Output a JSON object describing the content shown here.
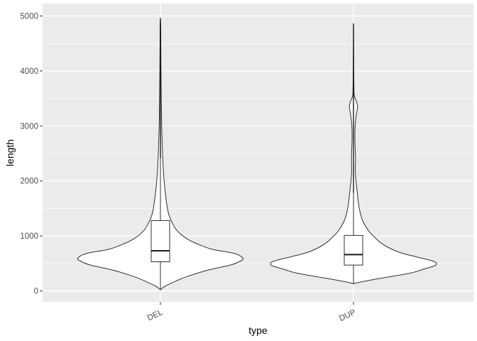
{
  "chart_data": {
    "type": "violin",
    "title": "",
    "xlabel": "type",
    "ylabel": "length",
    "categories": [
      "DEL",
      "DUP"
    ],
    "ylim": [
      -200,
      5200
    ],
    "yticks": [
      0,
      1000,
      2000,
      3000,
      4000,
      5000
    ],
    "grid": true,
    "legend": "none",
    "colors": {
      "panel": "#ebebeb",
      "grid_major": "#ffffff",
      "violin_fill": "#ffffff",
      "stroke": "#1a1a1a"
    },
    "boxplots": [
      {
        "category": "DEL",
        "min": 20,
        "q1": 530,
        "median": 730,
        "q3": 1280,
        "max": 2410,
        "outlier_max": 4950
      },
      {
        "category": "DUP",
        "min": 130,
        "q1": 470,
        "median": 660,
        "q3": 1010,
        "max": 1780,
        "outlier_max": 4850
      }
    ],
    "violins": [
      {
        "category": "DEL",
        "profile": [
          [
            20,
            0.0
          ],
          [
            80,
            0.05
          ],
          [
            160,
            0.16
          ],
          [
            260,
            0.32
          ],
          [
            380,
            0.58
          ],
          [
            470,
            0.85
          ],
          [
            550,
            0.98
          ],
          [
            600,
            1.0
          ],
          [
            680,
            0.9
          ],
          [
            760,
            0.62
          ],
          [
            860,
            0.44
          ],
          [
            960,
            0.31
          ],
          [
            1100,
            0.2
          ],
          [
            1250,
            0.14
          ],
          [
            1400,
            0.1
          ],
          [
            1600,
            0.075
          ],
          [
            1800,
            0.058
          ],
          [
            2000,
            0.045
          ],
          [
            2200,
            0.035
          ],
          [
            2500,
            0.026
          ],
          [
            2800,
            0.019
          ],
          [
            3100,
            0.014
          ],
          [
            3500,
            0.01
          ],
          [
            4000,
            0.007
          ],
          [
            4500,
            0.005
          ],
          [
            4800,
            0.004
          ],
          [
            4950,
            0.0
          ]
        ]
      },
      {
        "category": "DUP",
        "profile": [
          [
            130,
            0.0
          ],
          [
            160,
            0.08
          ],
          [
            230,
            0.33
          ],
          [
            320,
            0.68
          ],
          [
            400,
            0.86
          ],
          [
            470,
            1.0
          ],
          [
            540,
            0.97
          ],
          [
            620,
            0.76
          ],
          [
            700,
            0.56
          ],
          [
            800,
            0.41
          ],
          [
            900,
            0.31
          ],
          [
            1000,
            0.24
          ],
          [
            1100,
            0.18
          ],
          [
            1250,
            0.12
          ],
          [
            1400,
            0.085
          ],
          [
            1600,
            0.06
          ],
          [
            1800,
            0.045
          ],
          [
            2000,
            0.03
          ],
          [
            2200,
            0.022
          ],
          [
            2400,
            0.025
          ],
          [
            2600,
            0.02
          ],
          [
            2800,
            0.017
          ],
          [
            3000,
            0.02
          ],
          [
            3200,
            0.034
          ],
          [
            3350,
            0.05
          ],
          [
            3450,
            0.035
          ],
          [
            3550,
            0.01
          ],
          [
            3700,
            0.006
          ],
          [
            3900,
            0.004
          ],
          [
            4100,
            0.003
          ],
          [
            4400,
            0.002
          ],
          [
            4700,
            0.001
          ],
          [
            4850,
            0.0
          ]
        ]
      }
    ]
  }
}
